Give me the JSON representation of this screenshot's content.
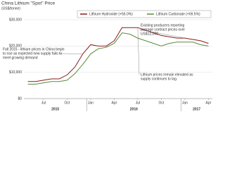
{
  "chart_data": {
    "type": "line",
    "title": "China Lithium \"Spot\" Price",
    "subtitle": "(US$/tonne)",
    "categories": [
      null,
      null,
      "Jul",
      null,
      null,
      "Oct",
      null,
      null,
      "Jan",
      null,
      null,
      "Apr",
      null,
      null,
      "Jul",
      null,
      null,
      "Oct",
      null,
      null,
      "Jan",
      null,
      null,
      "Apr"
    ],
    "year_labels": [
      {
        "label": "2015",
        "from": 0,
        "to": 7
      },
      {
        "label": "2016",
        "from": 8,
        "to": 19
      },
      {
        "label": "2017",
        "from": 20,
        "to": 23
      }
    ],
    "series": [
      {
        "name": "Lithium Hydroxide (+56.0%)",
        "color": "#8b1a1a",
        "values": [
          6500,
          6500,
          7000,
          7500,
          7500,
          9000,
          12000,
          17000,
          20500,
          20000,
          20000,
          22000,
          27000,
          27000,
          27000,
          26000,
          25000,
          24000,
          23500,
          23000,
          23000,
          22500,
          22000,
          21000
        ]
      },
      {
        "name": "Lithium Carbonate (+69.5%)",
        "color": "#5a8a3a",
        "values": [
          5500,
          5500,
          6000,
          6500,
          6500,
          7000,
          9500,
          13000,
          17000,
          19000,
          19500,
          21000,
          25000,
          24500,
          23000,
          22000,
          21000,
          20000,
          21000,
          21500,
          21500,
          21500,
          20500,
          20000
        ]
      }
    ],
    "ylim": [
      0,
      30000
    ],
    "yticks": [
      {
        "value": 0,
        "label": "$0"
      },
      {
        "value": 10000,
        "label": "$10,000"
      },
      {
        "value": 20000,
        "label": "$20,000"
      },
      {
        "value": 30000,
        "label": "$30,000"
      }
    ],
    "grid": true,
    "annotations": [
      {
        "lines": [
          "Fall 2015 - lithium prices in China begin",
          "to rise as expected new supply fails to",
          "meet growing demand"
        ],
        "at": 7
      },
      {
        "lines": [
          "Lithium prices remain elevated as",
          "supply continues to lag."
        ],
        "at": 14
      },
      {
        "lines": [
          "Existing producers reporting",
          "average contract prices over",
          "US$12,000"
        ],
        "at": 20
      }
    ]
  }
}
